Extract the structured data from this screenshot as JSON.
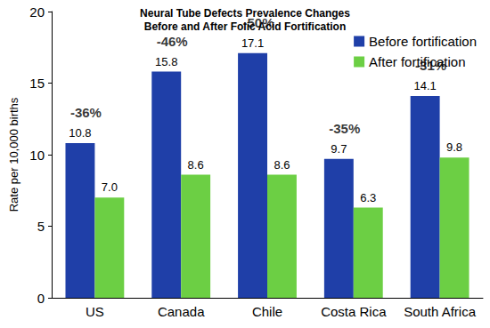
{
  "chart_data": {
    "type": "bar",
    "title": "Neural Tube Defects Prevalence Changes\nBefore and After Folic Acid Fortification",
    "y_label": "Rate per 10,000 births",
    "categories": [
      "US",
      "Canada",
      "Chile",
      "Costa Rica",
      "South Africa"
    ],
    "series": [
      {
        "name": "Before fortification",
        "color": "#1f3fa8",
        "values": [
          10.8,
          15.8,
          17.1,
          9.7,
          14.1
        ]
      },
      {
        "name": "After fortification",
        "color": "#6ccf44",
        "values": [
          7.0,
          8.6,
          8.6,
          6.3,
          9.8
        ],
        "value_labels": [
          "7.0",
          "8.6",
          "8.6",
          "6.3",
          "9.8"
        ]
      }
    ],
    "annotations": [
      "-36%",
      "-46%",
      "-50%",
      "-35%",
      "-31%"
    ],
    "ylim": [
      0,
      20
    ],
    "yticks": [
      0,
      5,
      10,
      15,
      20
    ],
    "grid": false,
    "legend": "upper right",
    "data_labels": true
  }
}
